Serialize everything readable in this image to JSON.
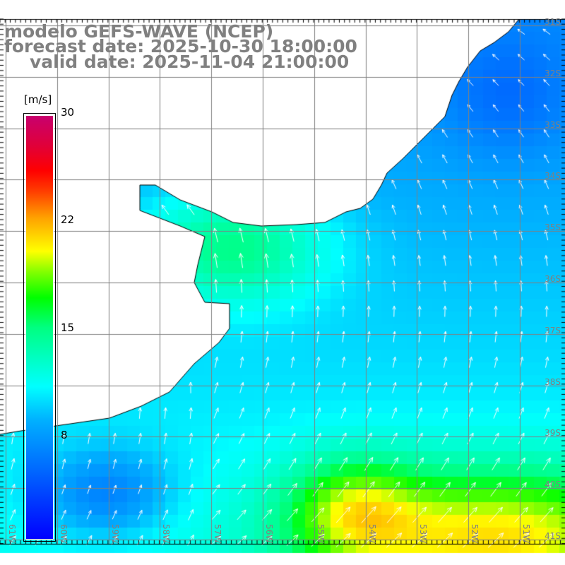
{
  "title": {
    "model": "modelo GEFS-WAVE (NCEP)",
    "forecast": "forecast date: 2025-10-30 18:00:00",
    "valid": "valid date: 2025-11-04 21:00:00"
  },
  "colorbar": {
    "unit": "[m/s]",
    "ticks": [
      "30",
      "22",
      "15",
      "8"
    ],
    "range": [
      1,
      30
    ]
  },
  "axes": {
    "lat_labels": [
      "31S",
      "32S",
      "33S",
      "34S",
      "35S",
      "36S",
      "37S",
      "38S",
      "39S",
      "40S",
      "41S"
    ],
    "lon_labels": [
      "61W",
      "60W",
      "59W",
      "58W",
      "57W",
      "56W",
      "55W",
      "54W",
      "53W",
      "52W",
      "51W"
    ]
  },
  "colors": {
    "land": "#ffffff",
    "grid": "#808080",
    "coast": "#000000",
    "arrow": "#ffffff"
  }
}
